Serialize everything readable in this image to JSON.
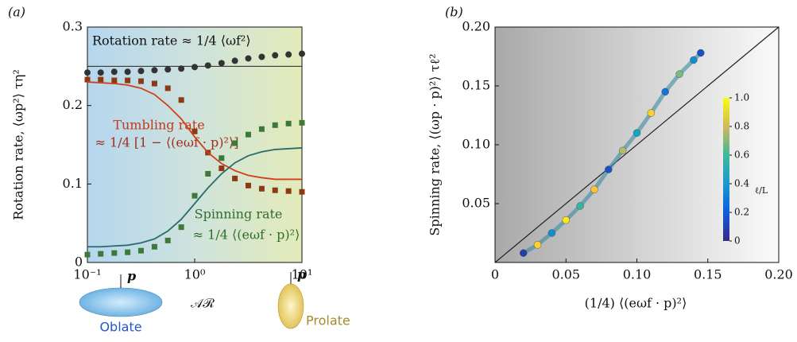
{
  "chart_data": [
    {
      "type": "line",
      "panel_label": "(a)",
      "ylabel": "Rotation rate, ⟨ωp²⟩ τη²",
      "xlabel": "𝒜ℛ",
      "xscale": "log",
      "xlim": [
        0.1,
        10
      ],
      "ylim": [
        0,
        0.3
      ],
      "xticks": [
        {
          "value": 0.1,
          "label": "10⁻¹"
        },
        {
          "value": 1,
          "label": "10⁰"
        },
        {
          "value": 10,
          "label": "10¹"
        }
      ],
      "yticks": [
        0,
        0.1,
        0.2,
        0.3
      ],
      "x": [
        0.1,
        0.133,
        0.178,
        0.237,
        0.316,
        0.422,
        0.562,
        0.75,
        1,
        1.33,
        1.78,
        2.37,
        3.16,
        4.22,
        5.62,
        7.5,
        10
      ],
      "series": [
        {
          "marker": "circle",
          "color": "#333333",
          "values": [
            0.242,
            0.242,
            0.243,
            0.243,
            0.244,
            0.245,
            0.246,
            0.247,
            0.249,
            0.251,
            0.254,
            0.257,
            0.26,
            0.262,
            0.264,
            0.265,
            0.266
          ]
        },
        {
          "marker": "square",
          "color": "#8b3a14",
          "values": [
            0.233,
            0.233,
            0.232,
            0.232,
            0.231,
            0.228,
            0.222,
            0.207,
            0.167,
            0.14,
            0.12,
            0.107,
            0.098,
            0.094,
            0.092,
            0.091,
            0.09
          ]
        },
        {
          "marker": "square",
          "color": "#3d7a3a",
          "values": [
            0.01,
            0.011,
            0.012,
            0.013,
            0.015,
            0.02,
            0.028,
            0.045,
            0.085,
            0.113,
            0.133,
            0.152,
            0.163,
            0.17,
            0.175,
            0.177,
            0.178
          ]
        },
        {
          "marker": "none",
          "color": "#d0401a",
          "values": [
            0.23,
            0.229,
            0.228,
            0.226,
            0.222,
            0.214,
            0.2,
            0.183,
            0.16,
            0.14,
            0.126,
            0.117,
            0.111,
            0.108,
            0.106,
            0.106,
            0.106
          ]
        },
        {
          "marker": "none",
          "color": "#2a6b6b",
          "values": [
            0.02,
            0.02,
            0.021,
            0.022,
            0.025,
            0.03,
            0.04,
            0.055,
            0.075,
            0.095,
            0.113,
            0.127,
            0.136,
            0.141,
            0.144,
            0.145,
            0.146
          ]
        }
      ],
      "reference_line": 0.25,
      "annotations": [
        "Rotation rate ≈ 1/4 ⟨ωf²⟩",
        "Tumbling rate",
        "≈ 1/4 [1 − ⟨(eωf · p)²⟩]",
        "Spinning rate",
        "≈ 1/4 ⟨(eωf · p)²⟩",
        "Oblate",
        "Prolate",
        "p",
        "p"
      ]
    },
    {
      "type": "scatter",
      "panel_label": "(b)",
      "ylabel": "Spinning rate, ⟨(ωp · p)²⟩ τℓ²",
      "xlabel": "(1/4) ⟨(eωf · p)²⟩",
      "xlim": [
        0,
        0.2
      ],
      "ylim": [
        0,
        0.2
      ],
      "xticks": [
        0,
        0.05,
        {
          "value": 0.1,
          "label": "0.10"
        },
        0.15,
        {
          "value": 0.2,
          "label": "0.20"
        }
      ],
      "yticks": [
        0.05,
        {
          "value": 0.1,
          "label": "0.10"
        },
        0.15,
        {
          "value": 0.2,
          "label": "0.20"
        }
      ],
      "x": [
        0.02,
        0.03,
        0.04,
        0.05,
        0.06,
        0.07,
        0.08,
        0.09,
        0.1,
        0.11,
        0.12,
        0.13,
        0.14,
        0.145
      ],
      "values": [
        0.008,
        0.015,
        0.025,
        0.036,
        0.048,
        0.062,
        0.079,
        0.095,
        0.11,
        0.127,
        0.145,
        0.16,
        0.172,
        0.178
      ],
      "color_values": [
        0.05,
        0.9,
        0.3,
        0.95,
        0.5,
        0.85,
        0.1,
        0.7,
        0.4,
        0.9,
        0.2,
        0.6,
        0.3,
        0.1
      ],
      "colorbar_label": "ℓ/L",
      "colorbar_lim": [
        0,
        1
      ],
      "colorbar_ticks": [
        0,
        0.2,
        0.4,
        0.6,
        0.8,
        {
          "value": 1,
          "label": "1.0"
        }
      ]
    }
  ]
}
